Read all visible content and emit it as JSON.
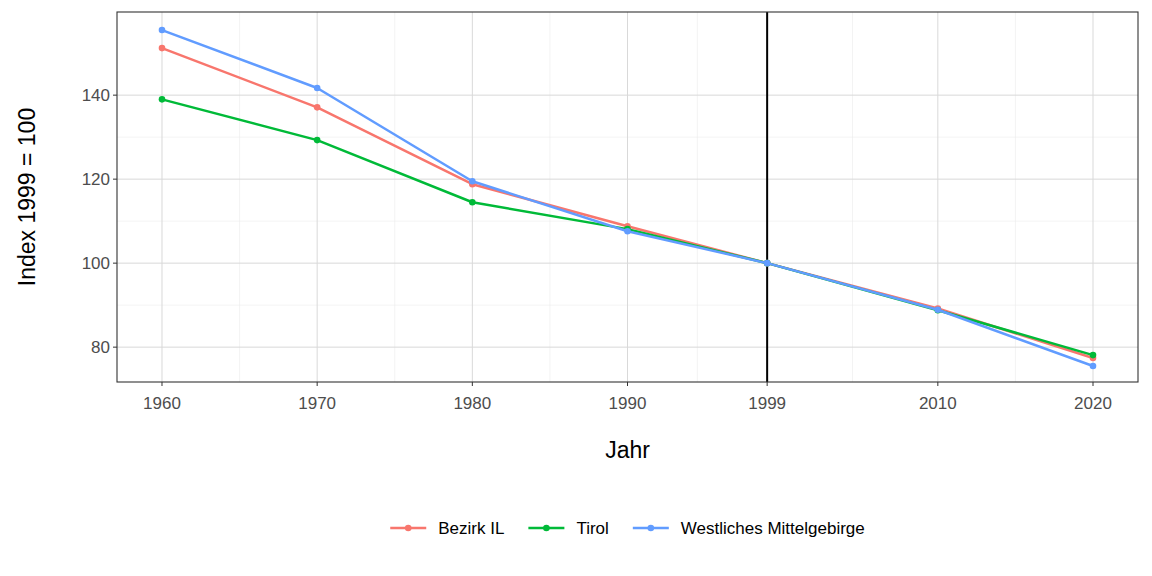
{
  "chart_data": {
    "type": "line",
    "x_label": "Jahr",
    "y_label": "Index 1999 = 100",
    "x": [
      1960,
      1970,
      1980,
      1990,
      1999,
      2010,
      2020
    ],
    "series": [
      {
        "name": "Bezirk IL",
        "color": "#F8766D",
        "marker": "circle",
        "values": [
          151.2,
          137.1,
          118.8,
          108.8,
          100,
          89.2,
          77.4
        ]
      },
      {
        "name": "Tirol",
        "color": "#00BA38",
        "marker": "circle",
        "values": [
          139.0,
          129.3,
          114.5,
          108.1,
          100,
          88.8,
          78.1
        ]
      },
      {
        "name": "Westliches Mittelgebirge",
        "color": "#619CFF",
        "marker": "circle",
        "values": [
          155.5,
          141.7,
          119.5,
          107.6,
          100,
          88.9,
          75.5
        ]
      }
    ],
    "reference_lines": [
      {
        "x": 1999
      }
    ],
    "xlim": [
      1957.1,
      2022.9
    ],
    "xticks": [
      1960,
      1970,
      1980,
      1990,
      1999,
      2010,
      2020
    ],
    "ylim": [
      71.7,
      159.8
    ],
    "yticks": [
      80,
      100,
      120,
      140
    ],
    "grid": true,
    "legend": "bottom"
  }
}
